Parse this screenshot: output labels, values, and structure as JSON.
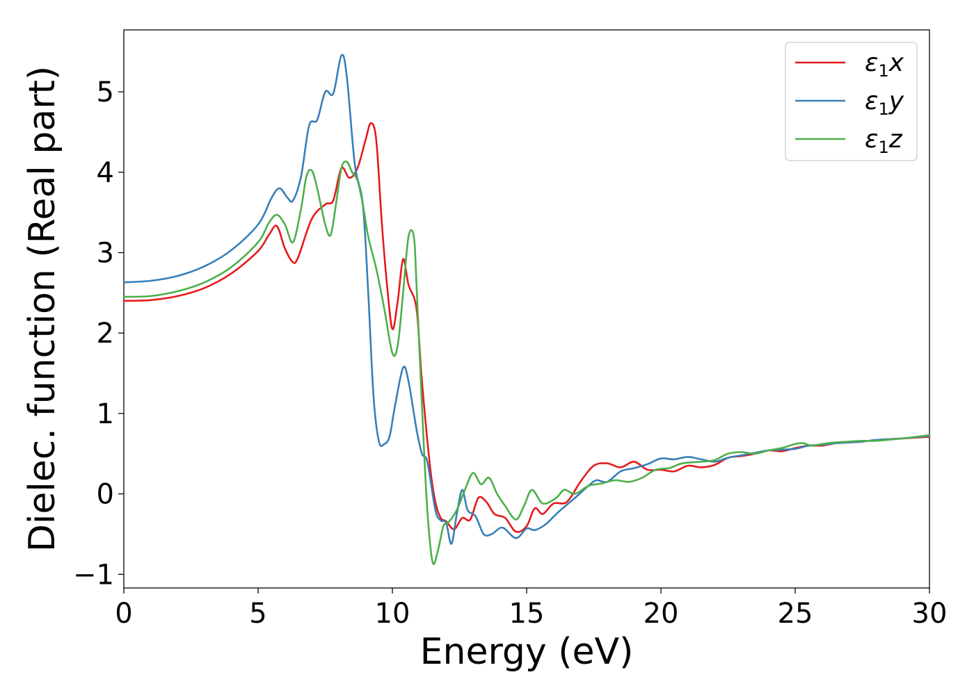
{
  "chart_data": {
    "type": "line",
    "title": "",
    "xlabel": "Energy (eV)",
    "ylabel": "Dielec. function (Real part)",
    "xlim": [
      0,
      30
    ],
    "ylim": [
      -1.17,
      5.77
    ],
    "xticks": [
      0,
      5,
      10,
      15,
      20,
      25,
      30
    ],
    "xtick_labels": [
      "0",
      "5",
      "10",
      "15",
      "20",
      "25",
      "30"
    ],
    "yticks": [
      -1,
      0,
      1,
      2,
      3,
      4,
      5
    ],
    "ytick_labels": [
      "−1",
      "0",
      "1",
      "2",
      "3",
      "4",
      "5"
    ],
    "grid": false,
    "legend_position": "top-right",
    "series": [
      {
        "name": "ε₁x",
        "legend_main": "ε",
        "legend_sub": "1",
        "legend_suffix": "x",
        "color": "#e41a1c",
        "points": [
          [
            0,
            2.4
          ],
          [
            1,
            2.41
          ],
          [
            2,
            2.46
          ],
          [
            3,
            2.56
          ],
          [
            4,
            2.74
          ],
          [
            5,
            3.02
          ],
          [
            5.4,
            3.22
          ],
          [
            5.7,
            3.33
          ],
          [
            6,
            3.05
          ],
          [
            6.3,
            2.88
          ],
          [
            6.5,
            2.95
          ],
          [
            7,
            3.42
          ],
          [
            7.5,
            3.6
          ],
          [
            7.8,
            3.65
          ],
          [
            8.1,
            4.05
          ],
          [
            8.4,
            3.93
          ],
          [
            8.7,
            4.05
          ],
          [
            9,
            4.4
          ],
          [
            9.2,
            4.61
          ],
          [
            9.4,
            4.4
          ],
          [
            9.6,
            3.4
          ],
          [
            9.8,
            2.6
          ],
          [
            10,
            2.05
          ],
          [
            10.2,
            2.4
          ],
          [
            10.4,
            2.92
          ],
          [
            10.6,
            2.6
          ],
          [
            10.9,
            2.3
          ],
          [
            11.1,
            1.4
          ],
          [
            11.4,
            0.35
          ],
          [
            11.6,
            -0.1
          ],
          [
            11.8,
            -0.3
          ],
          [
            12,
            -0.34
          ],
          [
            12.3,
            -0.44
          ],
          [
            12.6,
            -0.3
          ],
          [
            12.9,
            -0.32
          ],
          [
            13.2,
            -0.05
          ],
          [
            13.5,
            -0.1
          ],
          [
            13.8,
            -0.25
          ],
          [
            14.2,
            -0.3
          ],
          [
            14.6,
            -0.47
          ],
          [
            15,
            -0.4
          ],
          [
            15.3,
            -0.18
          ],
          [
            15.6,
            -0.25
          ],
          [
            16,
            -0.12
          ],
          [
            16.5,
            -0.1
          ],
          [
            17,
            0.15
          ],
          [
            17.5,
            0.35
          ],
          [
            18,
            0.38
          ],
          [
            18.5,
            0.33
          ],
          [
            19,
            0.4
          ],
          [
            19.5,
            0.3
          ],
          [
            20,
            0.3
          ],
          [
            20.5,
            0.28
          ],
          [
            21,
            0.35
          ],
          [
            21.5,
            0.33
          ],
          [
            22,
            0.36
          ],
          [
            22.5,
            0.45
          ],
          [
            23,
            0.47
          ],
          [
            23.5,
            0.5
          ],
          [
            24,
            0.54
          ],
          [
            24.5,
            0.53
          ],
          [
            25,
            0.57
          ],
          [
            25.5,
            0.6
          ],
          [
            26,
            0.6
          ],
          [
            26.5,
            0.63
          ],
          [
            27,
            0.64
          ],
          [
            27.5,
            0.65
          ],
          [
            28,
            0.67
          ],
          [
            29,
            0.69
          ],
          [
            30,
            0.71
          ]
        ]
      },
      {
        "name": "ε₁y",
        "legend_main": "ε",
        "legend_sub": "1",
        "legend_suffix": "y",
        "color": "#377eb8",
        "points": [
          [
            0,
            2.63
          ],
          [
            1,
            2.65
          ],
          [
            2,
            2.71
          ],
          [
            3,
            2.83
          ],
          [
            4,
            3.03
          ],
          [
            5,
            3.35
          ],
          [
            5.5,
            3.68
          ],
          [
            5.8,
            3.8
          ],
          [
            6.1,
            3.68
          ],
          [
            6.3,
            3.65
          ],
          [
            6.6,
            3.95
          ],
          [
            6.9,
            4.58
          ],
          [
            7.2,
            4.65
          ],
          [
            7.5,
            5.0
          ],
          [
            7.8,
            4.98
          ],
          [
            8.1,
            5.45
          ],
          [
            8.3,
            5.2
          ],
          [
            8.6,
            4.1
          ],
          [
            8.9,
            3.6
          ],
          [
            9.1,
            2.5
          ],
          [
            9.3,
            1.2
          ],
          [
            9.5,
            0.65
          ],
          [
            9.7,
            0.62
          ],
          [
            9.9,
            0.72
          ],
          [
            10.1,
            1.1
          ],
          [
            10.4,
            1.57
          ],
          [
            10.6,
            1.4
          ],
          [
            10.9,
            0.8
          ],
          [
            11.1,
            0.5
          ],
          [
            11.3,
            0.4
          ],
          [
            11.6,
            -0.2
          ],
          [
            11.8,
            -0.33
          ],
          [
            12,
            -0.36
          ],
          [
            12.2,
            -0.62
          ],
          [
            12.4,
            -0.25
          ],
          [
            12.6,
            0.05
          ],
          [
            12.8,
            -0.2
          ],
          [
            13.1,
            -0.28
          ],
          [
            13.4,
            -0.5
          ],
          [
            13.7,
            -0.5
          ],
          [
            14.1,
            -0.42
          ],
          [
            14.6,
            -0.55
          ],
          [
            15,
            -0.43
          ],
          [
            15.3,
            -0.45
          ],
          [
            15.7,
            -0.38
          ],
          [
            16.2,
            -0.22
          ],
          [
            16.8,
            -0.05
          ],
          [
            17.3,
            0.1
          ],
          [
            17.6,
            0.17
          ],
          [
            18,
            0.15
          ],
          [
            18.5,
            0.28
          ],
          [
            19,
            0.32
          ],
          [
            19.5,
            0.37
          ],
          [
            20,
            0.44
          ],
          [
            20.5,
            0.43
          ],
          [
            21,
            0.46
          ],
          [
            21.5,
            0.43
          ],
          [
            22,
            0.4
          ],
          [
            22.5,
            0.45
          ],
          [
            23,
            0.48
          ],
          [
            23.5,
            0.51
          ],
          [
            24,
            0.54
          ],
          [
            24.5,
            0.55
          ],
          [
            25,
            0.56
          ],
          [
            25.5,
            0.6
          ],
          [
            26,
            0.61
          ],
          [
            26.5,
            0.63
          ],
          [
            27,
            0.64
          ],
          [
            27.5,
            0.65
          ],
          [
            28,
            0.67
          ],
          [
            29,
            0.69
          ],
          [
            30,
            0.72
          ]
        ]
      },
      {
        "name": "ε₁z",
        "legend_main": "ε",
        "legend_sub": "1",
        "legend_suffix": "z",
        "color": "#4daf4a",
        "points": [
          [
            0,
            2.45
          ],
          [
            1,
            2.46
          ],
          [
            2,
            2.52
          ],
          [
            3,
            2.63
          ],
          [
            4,
            2.82
          ],
          [
            5,
            3.13
          ],
          [
            5.4,
            3.37
          ],
          [
            5.7,
            3.47
          ],
          [
            6,
            3.35
          ],
          [
            6.3,
            3.13
          ],
          [
            6.6,
            3.55
          ],
          [
            6.8,
            3.95
          ],
          [
            7,
            4.02
          ],
          [
            7.2,
            3.8
          ],
          [
            7.5,
            3.35
          ],
          [
            7.7,
            3.22
          ],
          [
            7.9,
            3.6
          ],
          [
            8.1,
            4.05
          ],
          [
            8.3,
            4.13
          ],
          [
            8.5,
            4.0
          ],
          [
            8.7,
            3.9
          ],
          [
            8.9,
            3.6
          ],
          [
            9.1,
            3.2
          ],
          [
            9.4,
            2.8
          ],
          [
            9.7,
            2.3
          ],
          [
            10,
            1.75
          ],
          [
            10.2,
            1.85
          ],
          [
            10.4,
            2.5
          ],
          [
            10.6,
            3.2
          ],
          [
            10.8,
            3.2
          ],
          [
            10.9,
            2.6
          ],
          [
            11.1,
            1.1
          ],
          [
            11.3,
            -0.2
          ],
          [
            11.5,
            -0.85
          ],
          [
            11.7,
            -0.7
          ],
          [
            11.9,
            -0.4
          ],
          [
            12.1,
            -0.35
          ],
          [
            12.4,
            -0.2
          ],
          [
            12.7,
            0.05
          ],
          [
            13,
            0.26
          ],
          [
            13.3,
            0.12
          ],
          [
            13.6,
            0.2
          ],
          [
            13.9,
            0.0
          ],
          [
            14.2,
            -0.15
          ],
          [
            14.6,
            -0.32
          ],
          [
            14.9,
            -0.15
          ],
          [
            15.2,
            0.05
          ],
          [
            15.6,
            -0.12
          ],
          [
            16.1,
            -0.05
          ],
          [
            16.4,
            0.05
          ],
          [
            16.8,
            0.0
          ],
          [
            17.3,
            0.1
          ],
          [
            17.8,
            0.13
          ],
          [
            18.3,
            0.17
          ],
          [
            18.8,
            0.15
          ],
          [
            19.3,
            0.2
          ],
          [
            19.8,
            0.3
          ],
          [
            20.3,
            0.32
          ],
          [
            20.8,
            0.38
          ],
          [
            21.5,
            0.4
          ],
          [
            22,
            0.42
          ],
          [
            22.5,
            0.5
          ],
          [
            23,
            0.52
          ],
          [
            23.5,
            0.5
          ],
          [
            24,
            0.54
          ],
          [
            24.5,
            0.57
          ],
          [
            25,
            0.62
          ],
          [
            25.3,
            0.63
          ],
          [
            25.6,
            0.6
          ],
          [
            26,
            0.62
          ],
          [
            26.5,
            0.64
          ],
          [
            27,
            0.65
          ],
          [
            27.5,
            0.66
          ],
          [
            28,
            0.66
          ],
          [
            29,
            0.69
          ],
          [
            30,
            0.73
          ]
        ]
      }
    ]
  }
}
